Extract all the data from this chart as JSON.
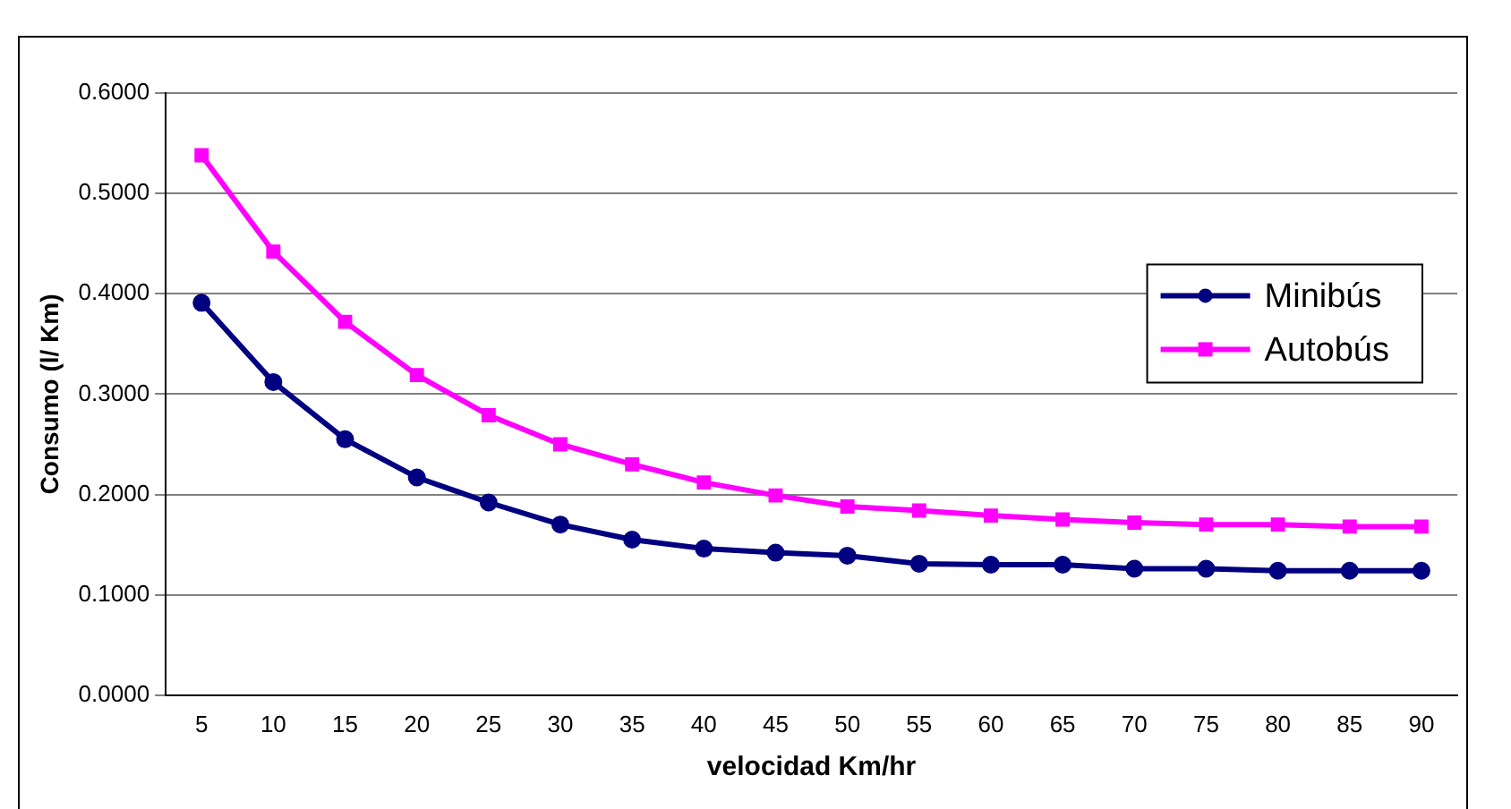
{
  "chart_data": {
    "type": "line",
    "xlabel": "velocidad Km/hr",
    "ylabel": "Consumo (l/ Km)",
    "categories": [
      "5",
      "10",
      "15",
      "20",
      "25",
      "30",
      "35",
      "40",
      "45",
      "50",
      "55",
      "60",
      "65",
      "70",
      "75",
      "80",
      "85",
      "90"
    ],
    "series": [
      {
        "name": "Minibús",
        "color": "#000080",
        "marker": "circle",
        "values": [
          0.391,
          0.312,
          0.255,
          0.217,
          0.192,
          0.17,
          0.155,
          0.146,
          0.142,
          0.139,
          0.131,
          0.13,
          0.13,
          0.126,
          0.126,
          0.124,
          0.124,
          0.124
        ]
      },
      {
        "name": "Autobús",
        "color": "#ff00ff",
        "marker": "square",
        "values": [
          0.538,
          0.442,
          0.372,
          0.319,
          0.279,
          0.25,
          0.23,
          0.212,
          0.199,
          0.188,
          0.184,
          0.179,
          0.175,
          0.172,
          0.17,
          0.17,
          0.168,
          0.168
        ]
      }
    ],
    "ylim": [
      0,
      0.6
    ],
    "yticks": [
      {
        "value": 0,
        "label": "0.0000"
      },
      {
        "value": 0.1,
        "label": "0.1000"
      },
      {
        "value": 0.2,
        "label": "0.2000"
      },
      {
        "value": 0.3,
        "label": "0.3000"
      },
      {
        "value": 0.4,
        "label": "0.4000"
      },
      {
        "value": 0.5,
        "label": "0.5000"
      },
      {
        "value": 0.6,
        "label": "0.6000"
      }
    ],
    "grid": "y",
    "legend": "right",
    "line_style": "solid"
  }
}
